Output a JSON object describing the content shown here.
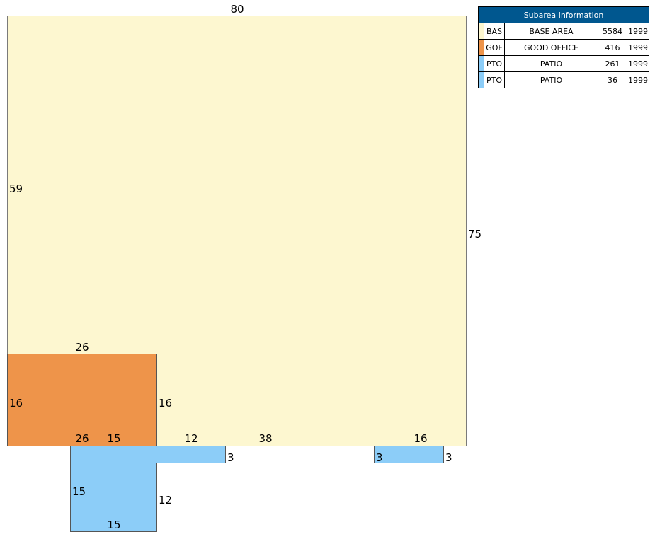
{
  "colors": {
    "base_area": "#fdf7d0",
    "good_office": "#ee944a",
    "patio": "#8ccdf8",
    "legend_header": "#00578f",
    "outline": "#7a7a7a"
  },
  "legend": {
    "title": "Subarea Information",
    "rows": [
      {
        "code": "BAS",
        "description": "BASE AREA",
        "area": "5584",
        "year": "1999",
        "color": "#fdf7d0"
      },
      {
        "code": "GOF",
        "description": "GOOD OFFICE",
        "area": "416",
        "year": "1999",
        "color": "#ee944a"
      },
      {
        "code": "PTO",
        "description": "PATIO",
        "area": "261",
        "year": "1999",
        "color": "#8ccdf8"
      },
      {
        "code": "PTO",
        "description": "PATIO",
        "area": "36",
        "year": "1999",
        "color": "#8ccdf8"
      }
    ]
  },
  "dimensions": {
    "bas_top": "80",
    "bas_left": "59",
    "bas_right": "75",
    "bas_bottom": "38",
    "gof_top": "26",
    "gof_left": "16",
    "gof_right": "16",
    "gof_bottom": "26",
    "pto1_top_left": "15",
    "pto1_top_right": "12",
    "pto1_right_end": "3",
    "pto1_left": "15",
    "pto1_right": "12",
    "pto1_bottom": "15",
    "pto2_top": "16",
    "pto2_left": "3",
    "pto2_right": "3"
  }
}
